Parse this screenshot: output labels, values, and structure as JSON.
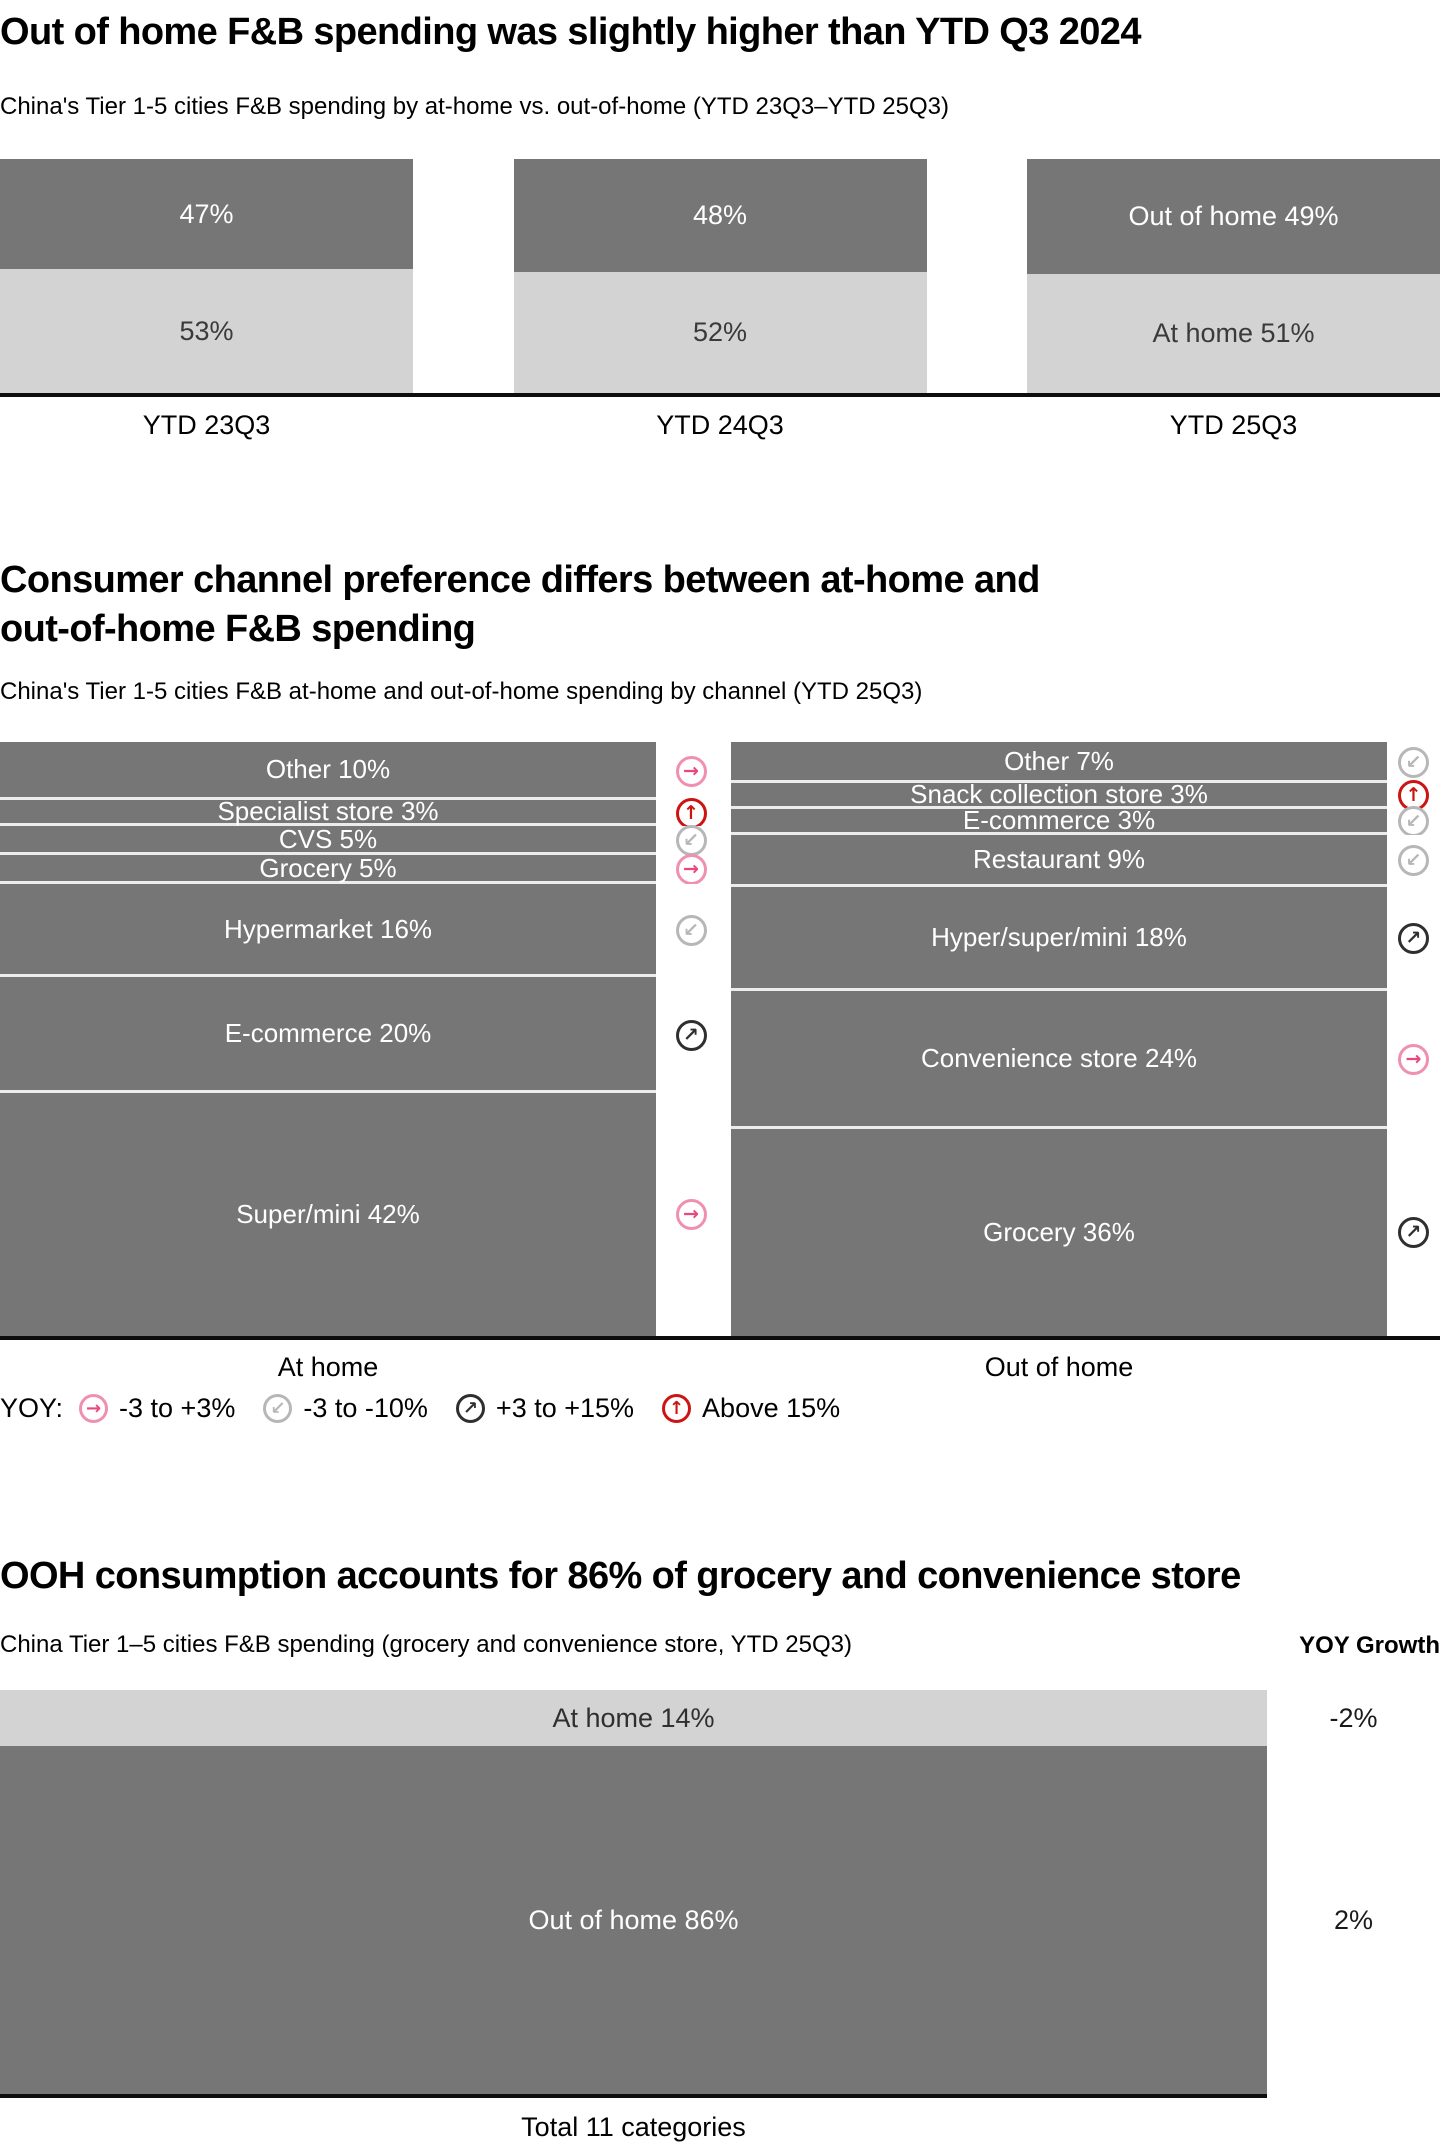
{
  "colors": {
    "bar_dark": "#767676",
    "bar_light": "#d3d3d3",
    "axis": "#0d0d0d",
    "separator": "#ececec",
    "yoy_flat": "#e8487c",
    "yoy_flat_ring": "#f090b0",
    "yoy_down": "#b7b7b7",
    "yoy_up": "#2f2f2f",
    "yoy_high": "#cd1414"
  },
  "icons": {
    "flat": {
      "name": "arrow-right-in-circle-icon",
      "glyph": "→"
    },
    "down": {
      "name": "arrow-down-left-in-circle-icon",
      "glyph": "↙"
    },
    "up": {
      "name": "arrow-up-right-in-circle-icon",
      "glyph": "↗"
    },
    "high": {
      "name": "arrow-up-in-circle-icon",
      "glyph": "↑"
    }
  },
  "section1": {
    "title": "Out of home F&B spending was slightly higher than YTD Q3 2024",
    "subtitle": "China's Tier 1-5 cities F&B spending by at-home vs. out-of-home (YTD 23Q3–YTD 25Q3)"
  },
  "section2": {
    "title_line1": "Consumer channel preference differs between at-home and",
    "title_line2": "out-of-home F&B spending",
    "subtitle": "China's Tier 1-5 cities F&B at-home and out-of-home spending by channel (YTD 25Q3)",
    "legend": {
      "label": "YOY:",
      "items": [
        {
          "icon": "flat",
          "text": "-3 to +3%"
        },
        {
          "icon": "down",
          "text": "-3 to -10%"
        },
        {
          "icon": "up",
          "text": "+3 to +15%"
        },
        {
          "icon": "high",
          "text": "Above 15%"
        }
      ]
    }
  },
  "section3": {
    "title": "OOH consumption accounts for 86% of grocery and convenience store",
    "subtitle": "China Tier 1–5 cities F&B spending (grocery and convenience store, YTD 25Q3)",
    "yoy_header": "YOY Growth",
    "footer": "Total 11 categories"
  },
  "chart_data": [
    {
      "type": "bar",
      "stacked": true,
      "title": "China's Tier 1-5 cities F&B spending by at-home vs. out-of-home (YTD 23Q3–YTD 25Q3)",
      "categories": [
        "YTD 23Q3",
        "YTD 24Q3",
        "YTD 25Q3"
      ],
      "series": [
        {
          "name": "Out of home",
          "color": "#767676",
          "values": [
            47,
            48,
            49
          ],
          "labels": [
            "47%",
            "48%",
            "Out of home 49%"
          ]
        },
        {
          "name": "At home",
          "color": "#d3d3d3",
          "values": [
            53,
            52,
            51
          ],
          "labels": [
            "53%",
            "52%",
            "At home 51%"
          ]
        }
      ],
      "ylim": [
        0,
        100
      ],
      "unit": "%"
    },
    {
      "type": "bar",
      "stacked": true,
      "title": "China's Tier 1-5 cities F&B at-home and out-of-home spending by channel (YTD 25Q3)",
      "yoy_scale": {
        "flat": "-3 to +3%",
        "down": "-3 to -10%",
        "up": "+3 to +15%",
        "high": "Above 15%"
      },
      "columns": [
        {
          "label": "At home",
          "segments": [
            {
              "name": "Other",
              "value": 10,
              "label": "Other 10%",
              "yoy": "flat"
            },
            {
              "name": "Specialist store",
              "value": 3,
              "label": "Specialist store 3%",
              "yoy": "high"
            },
            {
              "name": "CVS",
              "value": 5,
              "label": "CVS 5%",
              "yoy": "down"
            },
            {
              "name": "Grocery",
              "value": 5,
              "label": "Grocery 5%",
              "yoy": "flat"
            },
            {
              "name": "Hypermarket",
              "value": 16,
              "label": "Hypermarket 16%",
              "yoy": "down"
            },
            {
              "name": "E-commerce",
              "value": 20,
              "label": "E-commerce 20%",
              "yoy": "up"
            },
            {
              "name": "Super/mini",
              "value": 42,
              "label": "Super/mini 42%",
              "yoy": "flat"
            }
          ]
        },
        {
          "label": "Out of home",
          "segments": [
            {
              "name": "Other",
              "value": 7,
              "label": "Other 7%",
              "yoy": "down"
            },
            {
              "name": "Snack collection store",
              "value": 3,
              "label": "Snack collection store 3%",
              "yoy": "high"
            },
            {
              "name": "E-commerce",
              "value": 3,
              "label": "E-commerce 3%",
              "yoy": "down"
            },
            {
              "name": "Restaurant",
              "value": 9,
              "label": "Restaurant 9%",
              "yoy": "down"
            },
            {
              "name": "Hyper/super/mini",
              "value": 18,
              "label": "Hyper/super/mini 18%",
              "yoy": "up"
            },
            {
              "name": "Convenience store",
              "value": 24,
              "label": "Convenience store 24%",
              "yoy": "flat"
            },
            {
              "name": "Grocery",
              "value": 36,
              "label": "Grocery 36%",
              "yoy": "up"
            }
          ]
        }
      ]
    },
    {
      "type": "bar",
      "stacked": true,
      "title": "China Tier 1–5 cities F&B spending (grocery and convenience store, YTD 25Q3)",
      "segments": [
        {
          "name": "At home",
          "value": 14,
          "label": "At home 14%",
          "yoy_growth": "-2%",
          "color": "#d3d3d3"
        },
        {
          "name": "Out of home",
          "value": 86,
          "label": "Out of home 86%",
          "yoy_growth": "2%",
          "color": "#767676"
        }
      ],
      "footer": "Total 11 categories"
    }
  ]
}
